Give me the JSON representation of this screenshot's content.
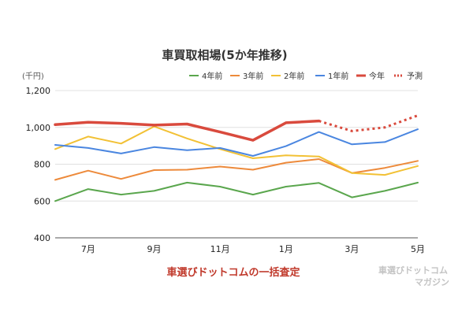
{
  "chart_data": {
    "type": "line",
    "title": "車買取相場(5か年推移)",
    "unit_label": "(千円)",
    "xlabel": "",
    "ylabel": "",
    "ylim": [
      400,
      1200
    ],
    "y_ticks": [
      "400",
      "600",
      "800",
      "1,000",
      "1,200"
    ],
    "x_tick_labels": [
      "7月",
      "9月",
      "11月",
      "1月",
      "3月",
      "5月"
    ],
    "x": [
      1,
      2,
      3,
      4,
      5,
      6,
      7,
      8,
      9,
      10,
      11,
      12
    ],
    "x_tick_positions": [
      2,
      4,
      6,
      8,
      10,
      12
    ],
    "grid": true,
    "legend_position": "top-right",
    "series": [
      {
        "name": "4年前",
        "color": "#5aa64d",
        "width": 2,
        "values": [
          600,
          665,
          635,
          655,
          700,
          678,
          635,
          678,
          698,
          620,
          655,
          700
        ]
      },
      {
        "name": "3年前",
        "color": "#ed8a3b",
        "width": 2,
        "values": [
          715,
          765,
          720,
          768,
          770,
          787,
          770,
          808,
          828,
          752,
          780,
          818
        ]
      },
      {
        "name": "2年前",
        "color": "#f2c135",
        "width": 2,
        "values": [
          882,
          950,
          912,
          1005,
          940,
          882,
          832,
          848,
          842,
          752,
          742,
          790
        ]
      },
      {
        "name": "1年前",
        "color": "#4a86e0",
        "width": 2,
        "values": [
          905,
          888,
          858,
          893,
          876,
          888,
          845,
          898,
          975,
          908,
          920,
          990
        ]
      },
      {
        "name": "今年",
        "color": "#d94a3d",
        "width": 3.5,
        "values": [
          1015,
          1028,
          1022,
          1012,
          1018,
          975,
          930,
          1025,
          1035,
          null,
          null,
          null
        ]
      },
      {
        "name": "予測",
        "color": "#d94a3d",
        "width": 3,
        "dashed": true,
        "values": [
          null,
          null,
          null,
          null,
          null,
          null,
          null,
          null,
          1035,
          980,
          1000,
          1065
        ]
      }
    ]
  },
  "caption": "車選びドットコムの一括査定",
  "watermark": {
    "line1": "車選びドットコム",
    "line2": "マガジン"
  }
}
